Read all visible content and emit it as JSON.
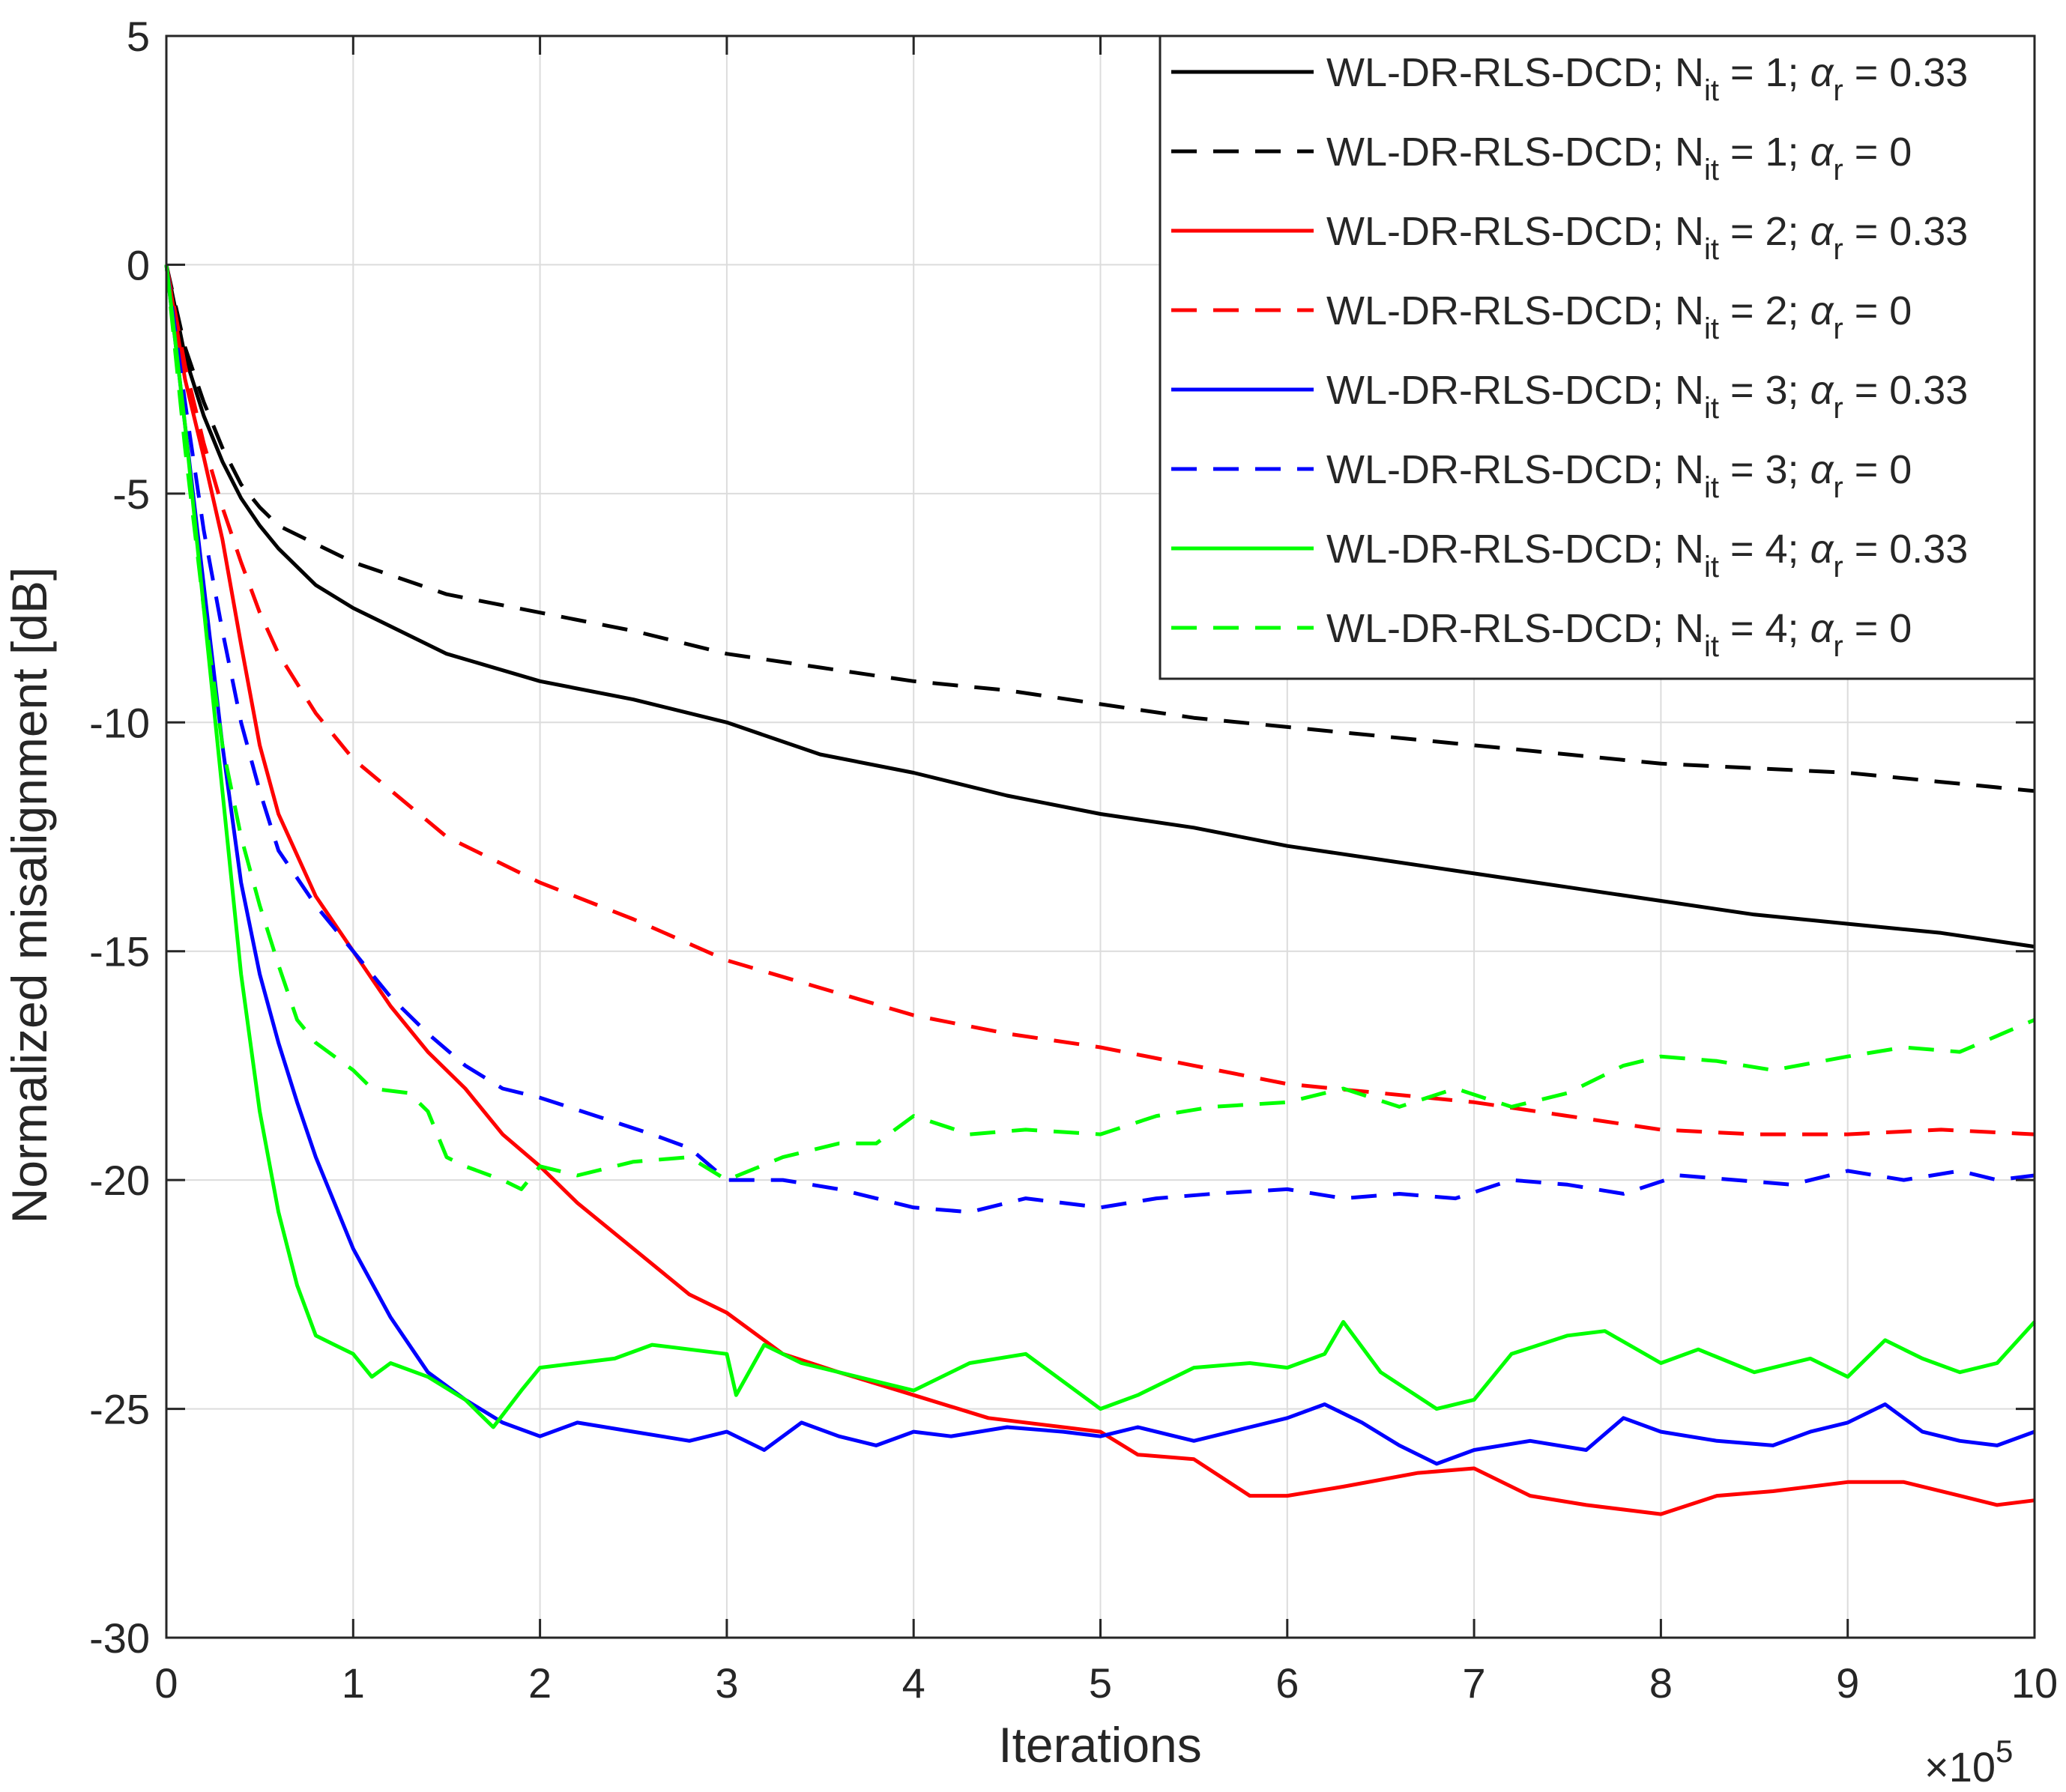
{
  "chart_data": {
    "type": "line",
    "title": "",
    "xlabel": "Iterations",
    "ylabel": "Normalized misalignment [dB]",
    "x_exponent_label": "×10",
    "x_exponent_power": "5",
    "xlim": [
      0,
      10
    ],
    "ylim": [
      -30,
      5
    ],
    "x_ticks": [
      0,
      1,
      2,
      3,
      4,
      5,
      6,
      7,
      8,
      9,
      10
    ],
    "x_tick_labels": [
      "0",
      "1",
      "2",
      "3",
      "4",
      "5",
      "6",
      "7",
      "8",
      "9",
      "10"
    ],
    "y_ticks": [
      5,
      0,
      -5,
      -10,
      -15,
      -20,
      -25,
      -30
    ],
    "y_tick_labels": [
      "5",
      "0",
      "-5",
      "-10",
      "-15",
      "-20",
      "-25",
      "-30"
    ],
    "grid": true,
    "legend_position": "top-right",
    "series": [
      {
        "name": "WL-DR-RLS-DCD; N_it = 1; α_r = 0.33",
        "legend": {
          "prefix": "WL-DR-RLS-DCD; N",
          "sub1": "it",
          "mid": " = 1; ",
          "alpha": "α",
          "sub2": "r",
          "suffix": " = 0.33"
        },
        "color": "#000000",
        "dash": "solid",
        "x": [
          0,
          0.1,
          0.2,
          0.3,
          0.4,
          0.5,
          0.6,
          0.8,
          1,
          1.5,
          2,
          2.5,
          3,
          3.5,
          4,
          4.5,
          5,
          5.5,
          6,
          6.5,
          7,
          7.5,
          8,
          8.5,
          9,
          9.5,
          10
        ],
        "y": [
          0,
          -2.0,
          -3.3,
          -4.3,
          -5.1,
          -5.7,
          -6.2,
          -7.0,
          -7.5,
          -8.5,
          -9.1,
          -9.5,
          -10.0,
          -10.7,
          -11.1,
          -11.6,
          -12.0,
          -12.3,
          -12.7,
          -13.0,
          -13.3,
          -13.6,
          -13.9,
          -14.2,
          -14.4,
          -14.6,
          -14.9
        ]
      },
      {
        "name": "WL-DR-RLS-DCD; N_it = 1; α_r = 0",
        "legend": {
          "prefix": "WL-DR-RLS-DCD; N",
          "sub1": "it",
          "mid": " = 1; ",
          "alpha": "α",
          "sub2": "r",
          "suffix": " = 0"
        },
        "color": "#000000",
        "dash": "dashed",
        "x": [
          0,
          0.1,
          0.2,
          0.3,
          0.4,
          0.5,
          0.6,
          0.8,
          1,
          1.5,
          2,
          2.5,
          3,
          3.5,
          4,
          4.5,
          5,
          5.5,
          6,
          6.5,
          7,
          7.5,
          8,
          8.5,
          9,
          9.5,
          10
        ],
        "y": [
          0,
          -1.8,
          -3.0,
          -4.0,
          -4.8,
          -5.3,
          -5.7,
          -6.1,
          -6.5,
          -7.2,
          -7.6,
          -8.0,
          -8.5,
          -8.8,
          -9.1,
          -9.3,
          -9.6,
          -9.9,
          -10.1,
          -10.3,
          -10.5,
          -10.7,
          -10.9,
          -11.0,
          -11.1,
          -11.3,
          -11.5
        ]
      },
      {
        "name": "WL-DR-RLS-DCD; N_it = 2; α_r = 0.33",
        "legend": {
          "prefix": "WL-DR-RLS-DCD; N",
          "sub1": "it",
          "mid": " = 2; ",
          "alpha": "α",
          "sub2": "r",
          "suffix": " = 0.33"
        },
        "color": "#ff0000",
        "dash": "solid",
        "x": [
          0,
          0.1,
          0.2,
          0.3,
          0.4,
          0.5,
          0.6,
          0.8,
          1,
          1.2,
          1.4,
          1.6,
          1.8,
          2,
          2.2,
          2.5,
          2.8,
          3,
          3.3,
          3.6,
          4,
          4.4,
          4.8,
          5,
          5.2,
          5.5,
          5.8,
          6,
          6.3,
          6.7,
          7,
          7.3,
          7.6,
          8,
          8.3,
          8.6,
          9,
          9.3,
          9.6,
          9.8,
          10
        ],
        "y": [
          0,
          -2.5,
          -4.2,
          -6.0,
          -8.3,
          -10.5,
          -12.0,
          -13.8,
          -15.0,
          -16.2,
          -17.2,
          -18.0,
          -19.0,
          -19.7,
          -20.5,
          -21.5,
          -22.5,
          -22.9,
          -23.8,
          -24.2,
          -24.7,
          -25.2,
          -25.4,
          -25.5,
          -26.0,
          -26.1,
          -26.9,
          -26.9,
          -26.7,
          -26.4,
          -26.3,
          -26.9,
          -27.1,
          -27.3,
          -26.9,
          -26.8,
          -26.6,
          -26.6,
          -26.9,
          -27.1,
          -27.0
        ]
      },
      {
        "name": "WL-DR-RLS-DCD; N_it = 2; α_r = 0",
        "legend": {
          "prefix": "WL-DR-RLS-DCD; N",
          "sub1": "it",
          "mid": " = 2; ",
          "alpha": "α",
          "sub2": "r",
          "suffix": " = 0"
        },
        "color": "#ff0000",
        "dash": "dashed",
        "x": [
          0,
          0.1,
          0.2,
          0.3,
          0.4,
          0.5,
          0.6,
          0.8,
          1,
          1.5,
          2,
          2.5,
          3,
          3.5,
          4,
          4.5,
          5,
          5.5,
          6,
          6.5,
          7,
          7.5,
          8,
          8.5,
          9,
          9.5,
          10
        ],
        "y": [
          0,
          -2.2,
          -3.9,
          -5.3,
          -6.5,
          -7.6,
          -8.5,
          -9.8,
          -10.8,
          -12.5,
          -13.5,
          -14.3,
          -15.2,
          -15.8,
          -16.4,
          -16.8,
          -17.1,
          -17.5,
          -17.9,
          -18.1,
          -18.3,
          -18.6,
          -18.9,
          -19.0,
          -19.0,
          -18.9,
          -19.0
        ]
      },
      {
        "name": "WL-DR-RLS-DCD; N_it = 3; α_r = 0.33",
        "legend": {
          "prefix": "WL-DR-RLS-DCD; N",
          "sub1": "it",
          "mid": " = 3; ",
          "alpha": "α",
          "sub2": "r",
          "suffix": " = 0.33"
        },
        "color": "#0000ff",
        "dash": "solid",
        "x": [
          0,
          0.1,
          0.2,
          0.3,
          0.4,
          0.5,
          0.6,
          0.7,
          0.8,
          1,
          1.2,
          1.4,
          1.6,
          1.8,
          2,
          2.2,
          2.5,
          2.8,
          3,
          3.2,
          3.4,
          3.6,
          3.8,
          4,
          4.2,
          4.5,
          4.8,
          5,
          5.2,
          5.5,
          5.8,
          6,
          6.2,
          6.4,
          6.6,
          6.8,
          7,
          7.3,
          7.6,
          7.8,
          8,
          8.3,
          8.6,
          8.8,
          9,
          9.2,
          9.4,
          9.6,
          9.8,
          10
        ],
        "y": [
          0,
          -3.5,
          -7.0,
          -10.5,
          -13.5,
          -15.5,
          -17.0,
          -18.3,
          -19.5,
          -21.5,
          -23.0,
          -24.2,
          -24.8,
          -25.3,
          -25.6,
          -25.3,
          -25.5,
          -25.7,
          -25.5,
          -25.9,
          -25.3,
          -25.6,
          -25.8,
          -25.5,
          -25.6,
          -25.4,
          -25.5,
          -25.6,
          -25.4,
          -25.7,
          -25.4,
          -25.2,
          -24.9,
          -25.3,
          -25.8,
          -26.2,
          -25.9,
          -25.7,
          -25.9,
          -25.2,
          -25.5,
          -25.7,
          -25.8,
          -25.5,
          -25.3,
          -24.9,
          -25.5,
          -25.7,
          -25.8,
          -25.5
        ]
      },
      {
        "name": "WL-DR-RLS-DCD; N_it = 3; α_r = 0",
        "legend": {
          "prefix": "WL-DR-RLS-DCD; N",
          "sub1": "it",
          "mid": " = 3; ",
          "alpha": "α",
          "sub2": "r",
          "suffix": " = 0"
        },
        "color": "#0000ff",
        "dash": "dashed",
        "x": [
          0,
          0.1,
          0.2,
          0.3,
          0.4,
          0.5,
          0.6,
          0.8,
          1,
          1.2,
          1.4,
          1.6,
          1.8,
          2,
          2.3,
          2.6,
          2.8,
          3,
          3.3,
          3.6,
          4,
          4.3,
          4.6,
          5,
          5.3,
          5.6,
          6,
          6.3,
          6.6,
          6.9,
          7.2,
          7.5,
          7.8,
          8.1,
          8.4,
          8.7,
          9,
          9.3,
          9.6,
          9.8,
          10
        ],
        "y": [
          0,
          -3.0,
          -5.8,
          -8.0,
          -10.0,
          -11.5,
          -12.8,
          -14.0,
          -15.0,
          -16.0,
          -16.8,
          -17.5,
          -18.0,
          -18.2,
          -18.6,
          -19.0,
          -19.3,
          -20.0,
          -20.0,
          -20.2,
          -20.6,
          -20.7,
          -20.4,
          -20.6,
          -20.4,
          -20.3,
          -20.2,
          -20.4,
          -20.3,
          -20.4,
          -20.0,
          -20.1,
          -20.3,
          -19.9,
          -20.0,
          -20.1,
          -19.8,
          -20.0,
          -19.8,
          -20.0,
          -19.9
        ]
      },
      {
        "name": "WL-DR-RLS-DCD; N_it = 4; α_r = 0.33",
        "legend": {
          "prefix": "WL-DR-RLS-DCD; N",
          "sub1": "it",
          "mid": " = 4; ",
          "alpha": "α",
          "sub2": "r",
          "suffix": " = 0.33"
        },
        "color": "#00ff00",
        "dash": "solid",
        "x": [
          0,
          0.1,
          0.2,
          0.3,
          0.4,
          0.5,
          0.6,
          0.7,
          0.8,
          0.9,
          1,
          1.1,
          1.2,
          1.4,
          1.6,
          1.75,
          1.9,
          2,
          2.2,
          2.4,
          2.6,
          2.8,
          3,
          3.05,
          3.2,
          3.4,
          3.6,
          3.8,
          4,
          4.3,
          4.6,
          4.8,
          5,
          5.2,
          5.5,
          5.8,
          6,
          6.2,
          6.3,
          6.5,
          6.8,
          7,
          7.2,
          7.5,
          7.7,
          8,
          8.2,
          8.5,
          8.8,
          9,
          9.2,
          9.4,
          9.6,
          9.8,
          10
        ],
        "y": [
          0,
          -3.5,
          -7.5,
          -11.5,
          -15.5,
          -18.5,
          -20.7,
          -22.3,
          -23.4,
          -23.6,
          -23.8,
          -24.3,
          -24.0,
          -24.3,
          -24.8,
          -25.4,
          -24.6,
          -24.1,
          -24.0,
          -23.9,
          -23.6,
          -23.7,
          -23.8,
          -24.7,
          -23.6,
          -24.0,
          -24.2,
          -24.4,
          -24.6,
          -24.0,
          -23.8,
          -24.4,
          -25.0,
          -24.7,
          -24.1,
          -24.0,
          -24.1,
          -23.8,
          -23.1,
          -24.2,
          -25.0,
          -24.8,
          -23.8,
          -23.4,
          -23.3,
          -24.0,
          -23.7,
          -24.2,
          -23.9,
          -24.3,
          -23.5,
          -23.9,
          -24.2,
          -24.0,
          -23.1
        ]
      },
      {
        "name": "WL-DR-RLS-DCD; N_it = 4; α_r = 0",
        "legend": {
          "prefix": "WL-DR-RLS-DCD; N",
          "sub1": "it",
          "mid": " = 4; ",
          "alpha": "α",
          "sub2": "r",
          "suffix": " = 0"
        },
        "color": "#00ff00",
        "dash": "dashed",
        "x": [
          0,
          0.1,
          0.2,
          0.3,
          0.4,
          0.5,
          0.6,
          0.7,
          0.8,
          1,
          1.1,
          1.3,
          1.4,
          1.5,
          1.6,
          1.8,
          1.9,
          2,
          2.2,
          2.5,
          2.8,
          3,
          3.3,
          3.6,
          3.8,
          4,
          4.3,
          4.6,
          5,
          5.3,
          5.6,
          6,
          6.3,
          6.6,
          6.9,
          7.2,
          7.5,
          7.8,
          8,
          8.3,
          8.6,
          9,
          9.3,
          9.6,
          10
        ],
        "y": [
          0,
          -4.0,
          -7.5,
          -10.5,
          -12.5,
          -14.0,
          -15.3,
          -16.5,
          -17.0,
          -17.6,
          -18.0,
          -18.1,
          -18.5,
          -19.5,
          -19.7,
          -20.0,
          -20.2,
          -19.7,
          -19.9,
          -19.6,
          -19.5,
          -20.0,
          -19.5,
          -19.2,
          -19.2,
          -18.6,
          -19.0,
          -18.9,
          -19.0,
          -18.6,
          -18.4,
          -18.3,
          -18.0,
          -18.4,
          -18.0,
          -18.4,
          -18.1,
          -17.5,
          -17.3,
          -17.4,
          -17.6,
          -17.3,
          -17.1,
          -17.2,
          -16.5
        ]
      }
    ]
  }
}
